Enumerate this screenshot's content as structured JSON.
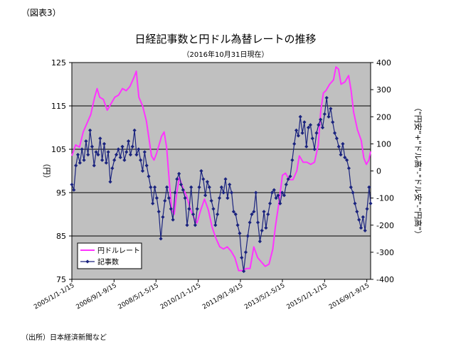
{
  "figure_label": "（図表3）",
  "title": "日経記事数と円ドル為替レートの推移",
  "subtitle": "（2016年10月31日現在）",
  "source": "（出所）日本経済新聞など",
  "colors": {
    "yen": "#ff33ff",
    "articles": "#1a237e",
    "plot_bg": "#c0c0c0",
    "grid": "#000000"
  },
  "chart_data": {
    "type": "line",
    "ylabel_left": "（円）",
    "ylabel_right": "（\"円安\"+\"ドル高\"-\"ドル安\"-\"円高\"）",
    "ylim_left": [
      75,
      125
    ],
    "yticks_left": [
      125,
      115,
      105,
      95,
      85,
      75
    ],
    "ylim_right": [
      -400,
      400
    ],
    "yticks_right": [
      400,
      300,
      200,
      100,
      0,
      -100,
      -200,
      -300,
      -400
    ],
    "x_range": [
      2005.0,
      2016.82
    ],
    "x_ticks": [
      {
        "label": "2005/1/1-1/15",
        "x": 2005.0
      },
      {
        "label": "2006/9/1-9/15",
        "x": 2006.67
      },
      {
        "label": "2008/5/1-5/15",
        "x": 2008.33
      },
      {
        "label": "2010/1/1-1/15",
        "x": 2010.0
      },
      {
        "label": "2011/9/1-9/15",
        "x": 2011.67
      },
      {
        "label": "2013/5/1-5/15",
        "x": 2013.33
      },
      {
        "label": "2015/1/1-1/15",
        "x": 2015.0
      },
      {
        "label": "2016/9/1-9/15",
        "x": 2016.67
      }
    ],
    "grid_lines_left": [
      115,
      105,
      95,
      85
    ],
    "series": [
      {
        "name": "円ドルレート",
        "axis": "left",
        "marker": "none",
        "points": [
          [
            2005.0,
            103.5
          ],
          [
            2005.15,
            106
          ],
          [
            2005.3,
            105.5
          ],
          [
            2005.45,
            109
          ],
          [
            2005.6,
            111
          ],
          [
            2005.75,
            113
          ],
          [
            2005.9,
            117
          ],
          [
            2006.0,
            119
          ],
          [
            2006.1,
            117
          ],
          [
            2006.25,
            116.5
          ],
          [
            2006.4,
            114
          ],
          [
            2006.55,
            115.5
          ],
          [
            2006.7,
            117
          ],
          [
            2006.85,
            117.5
          ],
          [
            2007.0,
            119
          ],
          [
            2007.15,
            118.5
          ],
          [
            2007.3,
            119.5
          ],
          [
            2007.45,
            121.5
          ],
          [
            2007.55,
            123
          ],
          [
            2007.65,
            117
          ],
          [
            2007.8,
            115
          ],
          [
            2007.95,
            111.5
          ],
          [
            2008.05,
            107.5
          ],
          [
            2008.15,
            103.5
          ],
          [
            2008.25,
            102.5
          ],
          [
            2008.35,
            104
          ],
          [
            2008.45,
            106
          ],
          [
            2008.55,
            108
          ],
          [
            2008.65,
            109
          ],
          [
            2008.75,
            105.5
          ],
          [
            2008.85,
            98
          ],
          [
            2008.95,
            91
          ],
          [
            2009.05,
            90
          ],
          [
            2009.15,
            95
          ],
          [
            2009.25,
            98.5
          ],
          [
            2009.4,
            96
          ],
          [
            2009.55,
            94
          ],
          [
            2009.7,
            91
          ],
          [
            2009.85,
            89
          ],
          [
            2009.95,
            88
          ],
          [
            2010.1,
            91
          ],
          [
            2010.25,
            93.5
          ],
          [
            2010.4,
            91
          ],
          [
            2010.55,
            87
          ],
          [
            2010.7,
            84.5
          ],
          [
            2010.85,
            82.5
          ],
          [
            2011.0,
            82
          ],
          [
            2011.15,
            82.5
          ],
          [
            2011.3,
            81.5
          ],
          [
            2011.45,
            80
          ],
          [
            2011.6,
            77
          ],
          [
            2011.75,
            77
          ],
          [
            2011.9,
            77.5
          ],
          [
            2012.05,
            77.5
          ],
          [
            2012.2,
            82.5
          ],
          [
            2012.35,
            80
          ],
          [
            2012.5,
            79
          ],
          [
            2012.65,
            78
          ],
          [
            2012.8,
            78.5
          ],
          [
            2012.95,
            82
          ],
          [
            2013.05,
            87
          ],
          [
            2013.2,
            93
          ],
          [
            2013.33,
            99
          ],
          [
            2013.45,
            99.5
          ],
          [
            2013.6,
            98
          ],
          [
            2013.75,
            98
          ],
          [
            2013.9,
            100
          ],
          [
            2014.0,
            103.5
          ],
          [
            2014.15,
            102
          ],
          [
            2014.3,
            102
          ],
          [
            2014.45,
            101.5
          ],
          [
            2014.6,
            102
          ],
          [
            2014.75,
            106
          ],
          [
            2014.85,
            114
          ],
          [
            2014.95,
            118
          ],
          [
            2015.05,
            118.5
          ],
          [
            2015.2,
            120
          ],
          [
            2015.35,
            121
          ],
          [
            2015.45,
            124
          ],
          [
            2015.55,
            123.5
          ],
          [
            2015.65,
            120
          ],
          [
            2015.8,
            120.5
          ],
          [
            2015.95,
            122
          ],
          [
            2016.05,
            118.5
          ],
          [
            2016.15,
            113.5
          ],
          [
            2016.3,
            109.5
          ],
          [
            2016.45,
            107
          ],
          [
            2016.55,
            103
          ],
          [
            2016.65,
            101.5
          ],
          [
            2016.75,
            102.5
          ],
          [
            2016.82,
            104.5
          ]
        ]
      },
      {
        "name": "記事数",
        "axis": "right",
        "marker": "diamond",
        "points": [
          [
            2005.0,
            -50
          ],
          [
            2005.08,
            -70
          ],
          [
            2005.16,
            20
          ],
          [
            2005.24,
            60
          ],
          [
            2005.32,
            30
          ],
          [
            2005.4,
            80
          ],
          [
            2005.48,
            40
          ],
          [
            2005.56,
            110
          ],
          [
            2005.64,
            60
          ],
          [
            2005.72,
            150
          ],
          [
            2005.8,
            90
          ],
          [
            2005.88,
            20
          ],
          [
            2005.96,
            70
          ],
          [
            2006.04,
            60
          ],
          [
            2006.12,
            120
          ],
          [
            2006.2,
            40
          ],
          [
            2006.28,
            100
          ],
          [
            2006.36,
            30
          ],
          [
            2006.44,
            70
          ],
          [
            2006.52,
            -40
          ],
          [
            2006.6,
            10
          ],
          [
            2006.68,
            40
          ],
          [
            2006.76,
            60
          ],
          [
            2006.84,
            80
          ],
          [
            2006.92,
            50
          ],
          [
            2007.0,
            90
          ],
          [
            2007.08,
            40
          ],
          [
            2007.16,
            70
          ],
          [
            2007.24,
            110
          ],
          [
            2007.32,
            60
          ],
          [
            2007.4,
            90
          ],
          [
            2007.48,
            150
          ],
          [
            2007.56,
            60
          ],
          [
            2007.64,
            80
          ],
          [
            2007.72,
            40
          ],
          [
            2007.8,
            0
          ],
          [
            2007.88,
            70
          ],
          [
            2007.96,
            20
          ],
          [
            2008.04,
            -20
          ],
          [
            2008.12,
            -60
          ],
          [
            2008.2,
            -120
          ],
          [
            2008.28,
            -60
          ],
          [
            2008.36,
            -100
          ],
          [
            2008.44,
            -150
          ],
          [
            2008.52,
            -250
          ],
          [
            2008.6,
            -170
          ],
          [
            2008.68,
            -110
          ],
          [
            2008.76,
            -60
          ],
          [
            2008.84,
            -100
          ],
          [
            2008.92,
            -140
          ],
          [
            2009.0,
            -180
          ],
          [
            2009.08,
            -80
          ],
          [
            2009.16,
            -30
          ],
          [
            2009.24,
            -10
          ],
          [
            2009.32,
            -50
          ],
          [
            2009.4,
            -70
          ],
          [
            2009.48,
            -100
          ],
          [
            2009.56,
            -200
          ],
          [
            2009.64,
            -140
          ],
          [
            2009.72,
            -60
          ],
          [
            2009.8,
            -160
          ],
          [
            2009.88,
            -200
          ],
          [
            2009.96,
            -140
          ],
          [
            2010.04,
            -60
          ],
          [
            2010.12,
            0
          ],
          [
            2010.2,
            -30
          ],
          [
            2010.28,
            -90
          ],
          [
            2010.36,
            -40
          ],
          [
            2010.44,
            -60
          ],
          [
            2010.52,
            -110
          ],
          [
            2010.6,
            -140
          ],
          [
            2010.68,
            -200
          ],
          [
            2010.76,
            -160
          ],
          [
            2010.84,
            -100
          ],
          [
            2010.92,
            -60
          ],
          [
            2011.0,
            -80
          ],
          [
            2011.08,
            -30
          ],
          [
            2011.16,
            -100
          ],
          [
            2011.24,
            -50
          ],
          [
            2011.32,
            -80
          ],
          [
            2011.4,
            -150
          ],
          [
            2011.48,
            -160
          ],
          [
            2011.56,
            -200
          ],
          [
            2011.64,
            -230
          ],
          [
            2011.72,
            -320
          ],
          [
            2011.8,
            -370
          ],
          [
            2011.88,
            -300
          ],
          [
            2011.96,
            -240
          ],
          [
            2012.04,
            -190
          ],
          [
            2012.12,
            -160
          ],
          [
            2012.2,
            -150
          ],
          [
            2012.28,
            -80
          ],
          [
            2012.36,
            -190
          ],
          [
            2012.44,
            -260
          ],
          [
            2012.52,
            -220
          ],
          [
            2012.6,
            -150
          ],
          [
            2012.68,
            -210
          ],
          [
            2012.76,
            -160
          ],
          [
            2012.84,
            -120
          ],
          [
            2012.92,
            -80
          ],
          [
            2013.0,
            -70
          ],
          [
            2013.08,
            -100
          ],
          [
            2013.16,
            -90
          ],
          [
            2013.24,
            -120
          ],
          [
            2013.32,
            -80
          ],
          [
            2013.4,
            -90
          ],
          [
            2013.48,
            -50
          ],
          [
            2013.56,
            -30
          ],
          [
            2013.64,
            -20
          ],
          [
            2013.72,
            40
          ],
          [
            2013.8,
            100
          ],
          [
            2013.88,
            150
          ],
          [
            2013.96,
            130
          ],
          [
            2014.04,
            200
          ],
          [
            2014.12,
            140
          ],
          [
            2014.2,
            180
          ],
          [
            2014.28,
            90
          ],
          [
            2014.36,
            160
          ],
          [
            2014.44,
            170
          ],
          [
            2014.52,
            120
          ],
          [
            2014.6,
            80
          ],
          [
            2014.68,
            140
          ],
          [
            2014.76,
            170
          ],
          [
            2014.84,
            190
          ],
          [
            2014.92,
            160
          ],
          [
            2015.0,
            210
          ],
          [
            2015.08,
            270
          ],
          [
            2015.16,
            200
          ],
          [
            2015.24,
            230
          ],
          [
            2015.32,
            180
          ],
          [
            2015.4,
            140
          ],
          [
            2015.48,
            120
          ],
          [
            2015.56,
            90
          ],
          [
            2015.64,
            60
          ],
          [
            2015.72,
            100
          ],
          [
            2015.8,
            50
          ],
          [
            2015.88,
            40
          ],
          [
            2015.96,
            10
          ],
          [
            2016.04,
            -60
          ],
          [
            2016.12,
            -80
          ],
          [
            2016.2,
            -120
          ],
          [
            2016.28,
            -150
          ],
          [
            2016.36,
            -180
          ],
          [
            2016.44,
            -210
          ],
          [
            2016.52,
            -170
          ],
          [
            2016.6,
            -220
          ],
          [
            2016.68,
            -140
          ],
          [
            2016.76,
            -60
          ],
          [
            2016.82,
            -120
          ]
        ]
      }
    ]
  }
}
